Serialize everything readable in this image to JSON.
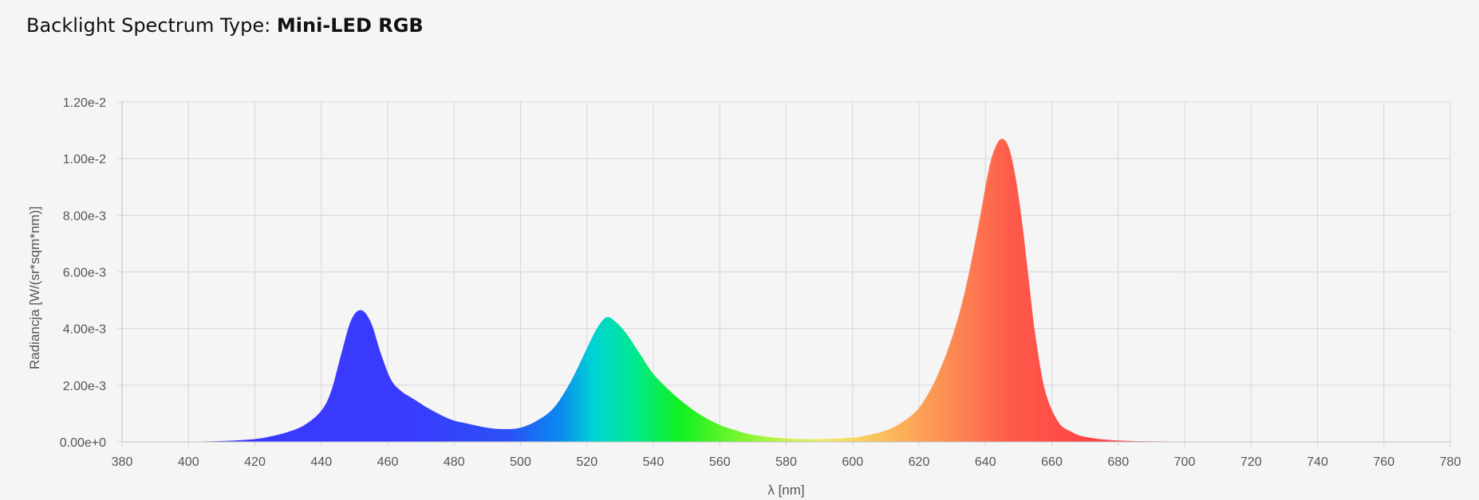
{
  "header": {
    "label": "Backlight Spectrum Type:",
    "value": "Mini-LED RGB"
  },
  "chart_data": {
    "type": "area",
    "title": "",
    "xlabel": "λ [nm]",
    "ylabel": "Radiancja [W/(sr*sqm*nm)]",
    "xlim": [
      380,
      780
    ],
    "ylim": [
      0,
      0.012
    ],
    "grid": true,
    "x_ticks": [
      "380",
      "400",
      "420",
      "440",
      "460",
      "480",
      "500",
      "520",
      "540",
      "560",
      "580",
      "600",
      "620",
      "640",
      "660",
      "680",
      "700",
      "720",
      "740",
      "760",
      "780"
    ],
    "y_ticks": [
      "0.00e+0",
      "2.00e-3",
      "4.00e-3",
      "6.00e-3",
      "8.00e-3",
      "1.00e-2",
      "1.20e-2"
    ],
    "x": [
      380,
      400,
      410,
      420,
      425,
      430,
      435,
      440,
      443,
      446,
      449,
      452,
      455,
      458,
      461,
      464,
      468,
      472,
      476,
      480,
      485,
      490,
      495,
      500,
      505,
      510,
      515,
      520,
      523,
      526,
      529,
      532,
      536,
      540,
      545,
      550,
      555,
      560,
      565,
      570,
      580,
      590,
      600,
      605,
      610,
      615,
      620,
      625,
      630,
      634,
      638,
      641,
      643,
      645,
      647,
      649,
      651,
      653,
      655,
      658,
      662,
      666,
      670,
      680,
      700,
      720,
      780
    ],
    "y": [
      0,
      1e-05,
      3e-05,
      0.0001,
      0.0002,
      0.00035,
      0.0006,
      0.0011,
      0.0018,
      0.0031,
      0.0043,
      0.00465,
      0.0042,
      0.0031,
      0.0022,
      0.0018,
      0.0015,
      0.0012,
      0.00095,
      0.00075,
      0.00062,
      0.0005,
      0.00045,
      0.0005,
      0.00075,
      0.0012,
      0.0021,
      0.0033,
      0.004,
      0.0044,
      0.0042,
      0.0038,
      0.0031,
      0.0024,
      0.0018,
      0.0013,
      0.0009,
      0.0006,
      0.0004,
      0.00025,
      0.00012,
      0.0001,
      0.00015,
      0.00025,
      0.0004,
      0.0007,
      0.0012,
      0.0022,
      0.0037,
      0.0054,
      0.0077,
      0.0096,
      0.0104,
      0.0107,
      0.0104,
      0.0094,
      0.0078,
      0.0058,
      0.0038,
      0.0018,
      0.0007,
      0.00035,
      0.00018,
      5e-05,
      1e-05,
      0,
      0
    ]
  }
}
